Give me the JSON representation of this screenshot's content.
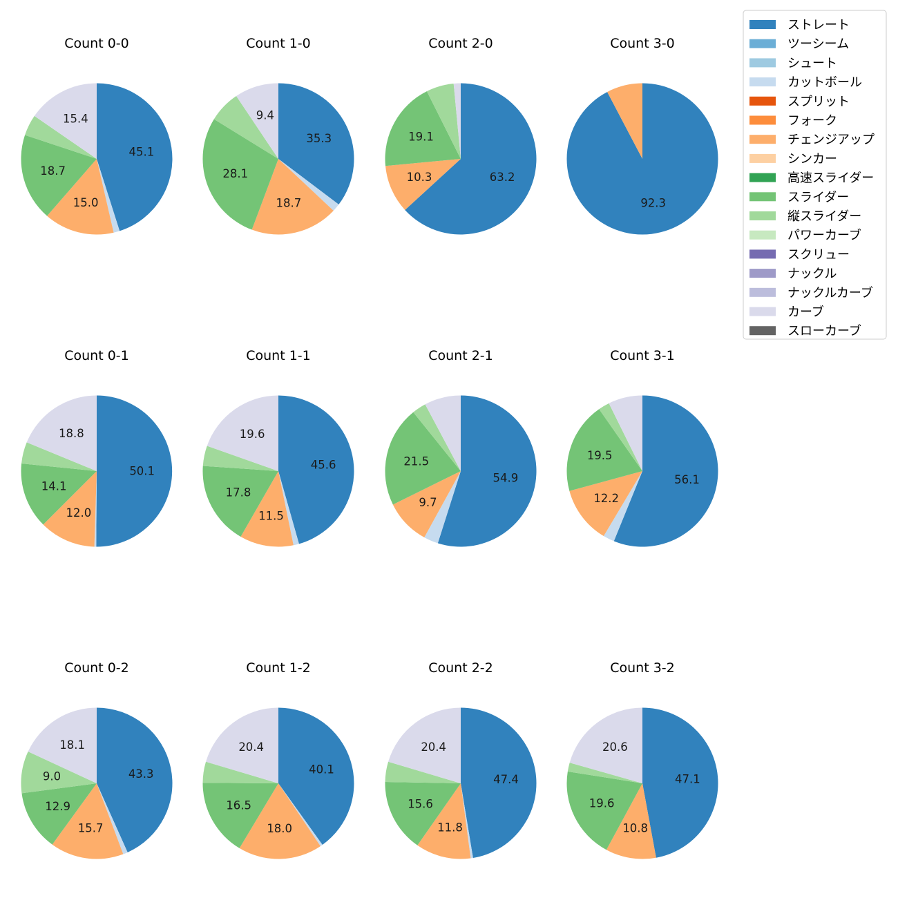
{
  "chart_data": {
    "type": "pie",
    "legend_position": "top-right",
    "categories": [
      "ストレート",
      "ツーシーム",
      "シュート",
      "カットボール",
      "スプリット",
      "フォーク",
      "チェンジアップ",
      "シンカー",
      "高速スライダー",
      "スライダー",
      "縦スライダー",
      "パワーカーブ",
      "スクリュー",
      "ナックル",
      "ナックルカーブ",
      "カーブ",
      "スローカーブ"
    ],
    "colors": [
      "#3182bd",
      "#6baed6",
      "#9ecae1",
      "#c6dbef",
      "#e6550d",
      "#fd8d3c",
      "#fdae6b",
      "#fdd0a2",
      "#31a354",
      "#74c476",
      "#a1d99b",
      "#c7e9c0",
      "#756bb1",
      "#9e9ac8",
      "#bcbddc",
      "#dadaeb",
      "#636363"
    ],
    "charts": [
      {
        "title": "Count 0-0",
        "values": [
          45.1,
          0,
          0,
          1.3,
          0,
          0,
          15.0,
          0,
          0,
          18.7,
          4.5,
          0,
          0,
          0,
          0,
          15.4,
          0
        ]
      },
      {
        "title": "Count 1-0",
        "values": [
          35.3,
          0,
          0,
          1.7,
          0,
          0,
          18.7,
          0,
          0,
          28.1,
          6.8,
          0,
          0,
          0,
          0,
          9.4,
          0
        ]
      },
      {
        "title": "Count 2-0",
        "values": [
          63.2,
          0,
          0,
          0,
          0,
          0,
          10.3,
          0,
          0,
          19.1,
          5.9,
          0,
          0,
          0,
          0,
          1.5,
          0
        ]
      },
      {
        "title": "Count 3-0",
        "values": [
          92.3,
          0,
          0,
          0,
          0,
          0,
          7.7,
          0,
          0,
          0,
          0,
          0,
          0,
          0,
          0,
          0,
          0
        ]
      },
      {
        "title": "Count 0-1",
        "values": [
          50.1,
          0,
          0,
          0.4,
          0,
          0,
          12.0,
          0,
          0,
          14.1,
          4.6,
          0,
          0,
          0,
          0,
          18.8,
          0
        ]
      },
      {
        "title": "Count 1-1",
        "values": [
          45.6,
          0,
          0,
          1.2,
          0,
          0,
          11.5,
          0,
          0,
          17.8,
          4.3,
          0,
          0,
          0,
          0,
          19.6,
          0
        ]
      },
      {
        "title": "Count 2-1",
        "values": [
          54.9,
          0,
          0,
          3.1,
          0,
          0,
          9.7,
          0,
          0,
          21.5,
          3.0,
          0,
          0,
          0,
          0,
          7.8,
          0
        ]
      },
      {
        "title": "Count 3-1",
        "values": [
          56.1,
          0,
          0,
          2.4,
          0,
          0,
          12.2,
          0,
          0,
          19.5,
          2.4,
          0,
          0,
          0,
          0,
          7.3,
          0
        ]
      },
      {
        "title": "Count 0-2",
        "values": [
          43.3,
          0,
          0,
          1.0,
          0,
          0,
          15.7,
          0,
          0,
          12.9,
          9.0,
          0,
          0,
          0,
          0,
          18.1,
          0
        ]
      },
      {
        "title": "Count 1-2",
        "values": [
          40.1,
          0,
          0,
          0.5,
          0,
          0,
          18.0,
          0,
          0,
          16.5,
          4.5,
          0,
          0,
          0,
          0,
          20.4,
          0
        ]
      },
      {
        "title": "Count 2-2",
        "values": [
          47.4,
          0,
          0,
          0.5,
          0,
          0,
          11.8,
          0,
          0,
          15.6,
          4.3,
          0,
          0,
          0,
          0,
          20.4,
          0
        ]
      },
      {
        "title": "Count 3-2",
        "values": [
          47.1,
          0,
          0,
          0,
          0,
          0,
          10.8,
          0,
          0,
          19.6,
          1.9,
          0,
          0,
          0,
          0,
          20.6,
          0
        ]
      }
    ]
  }
}
